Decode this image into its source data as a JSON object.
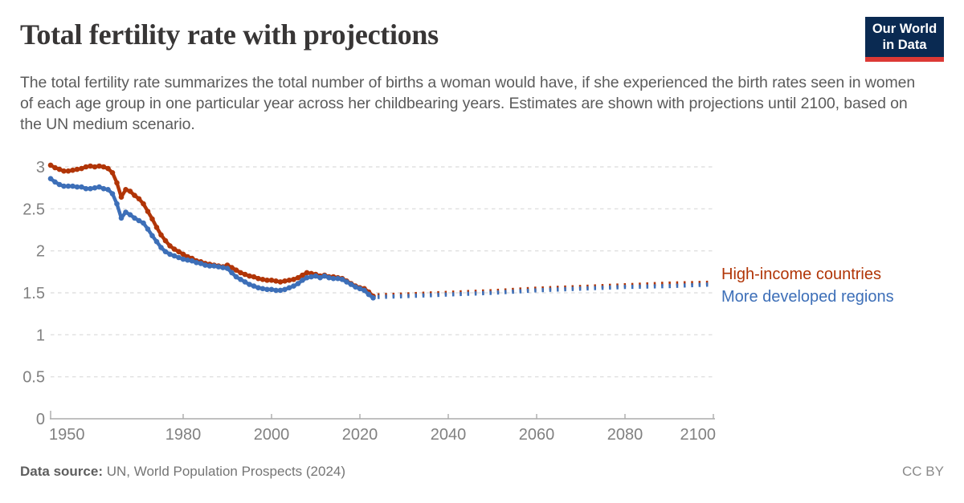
{
  "header": {
    "title": "Total fertility rate with projections",
    "logo": {
      "line1": "Our World",
      "line2": "in Data"
    }
  },
  "subtitle": "The total fertility rate summarizes the total number of births a woman would have, if she experienced the birth rates seen in women of each age group in one particular year across her childbearing years. Estimates are shown with projections until 2100, based on the UN medium scenario.",
  "footer": {
    "source_label": "Data source:",
    "source_text": " UN, World Population Prospects (2024)",
    "license": "CC BY"
  },
  "colors": {
    "red_series": "#b13507",
    "blue_series": "#3d6fb8",
    "gridline": "#e0e0e0",
    "axis": "#ababab",
    "tick_label": "#818181",
    "logo_bg": "#0a2a52",
    "logo_bar": "#dc3935"
  },
  "chart_data": {
    "type": "line",
    "title": "Total fertility rate with projections",
    "xlabel": "",
    "ylabel": "",
    "x_range": [
      1950,
      2100
    ],
    "y_range": [
      0,
      3
    ],
    "x_ticks": [
      1950,
      1980,
      2000,
      2020,
      2040,
      2060,
      2080,
      2100
    ],
    "y_ticks": [
      0,
      0.5,
      1,
      1.5,
      2,
      2.5,
      3
    ],
    "grid": true,
    "legend_position": "right-of-line-end",
    "series": [
      {
        "name": "High-income countries",
        "color": "#b13507",
        "style": "solid-dots",
        "x_start": 1950,
        "x_step": 1,
        "values": [
          3.02,
          2.99,
          2.97,
          2.95,
          2.95,
          2.96,
          2.97,
          2.98,
          3.0,
          3.01,
          3.0,
          3.01,
          3.0,
          2.98,
          2.93,
          2.81,
          2.64,
          2.73,
          2.71,
          2.66,
          2.62,
          2.56,
          2.47,
          2.38,
          2.28,
          2.19,
          2.12,
          2.06,
          2.02,
          1.99,
          1.96,
          1.93,
          1.91,
          1.88,
          1.87,
          1.85,
          1.84,
          1.83,
          1.82,
          1.81,
          1.83,
          1.8,
          1.77,
          1.74,
          1.72,
          1.7,
          1.69,
          1.67,
          1.66,
          1.65,
          1.65,
          1.64,
          1.63,
          1.64,
          1.65,
          1.66,
          1.68,
          1.71,
          1.74,
          1.73,
          1.72,
          1.7,
          1.71,
          1.69,
          1.69,
          1.68,
          1.67,
          1.64,
          1.61,
          1.58,
          1.56,
          1.55,
          1.51,
          1.46
        ]
      },
      {
        "name": "More developed regions",
        "color": "#3d6fb8",
        "style": "solid-dots",
        "x_start": 1950,
        "x_step": 1,
        "values": [
          2.86,
          2.82,
          2.79,
          2.77,
          2.77,
          2.77,
          2.76,
          2.76,
          2.74,
          2.74,
          2.75,
          2.76,
          2.74,
          2.73,
          2.68,
          2.56,
          2.39,
          2.46,
          2.43,
          2.39,
          2.36,
          2.33,
          2.26,
          2.18,
          2.11,
          2.04,
          1.99,
          1.96,
          1.94,
          1.92,
          1.9,
          1.89,
          1.88,
          1.86,
          1.85,
          1.83,
          1.82,
          1.82,
          1.81,
          1.8,
          1.79,
          1.74,
          1.69,
          1.66,
          1.63,
          1.6,
          1.58,
          1.56,
          1.55,
          1.54,
          1.54,
          1.53,
          1.53,
          1.54,
          1.56,
          1.58,
          1.61,
          1.65,
          1.68,
          1.69,
          1.7,
          1.68,
          1.7,
          1.68,
          1.67,
          1.67,
          1.66,
          1.63,
          1.6,
          1.57,
          1.55,
          1.53,
          1.48,
          1.44
        ]
      },
      {
        "name": "High-income countries (projection)",
        "color": "#b13507",
        "style": "dotted",
        "x": [
          2024,
          2030,
          2040,
          2050,
          2060,
          2070,
          2080,
          2090,
          2100
        ],
        "values": [
          1.47,
          1.48,
          1.5,
          1.52,
          1.55,
          1.57,
          1.59,
          1.61,
          1.62
        ]
      },
      {
        "name": "More developed regions (projection)",
        "color": "#3d6fb8",
        "style": "dotted",
        "x": [
          2024,
          2030,
          2040,
          2050,
          2060,
          2070,
          2080,
          2090,
          2100
        ],
        "values": [
          1.45,
          1.46,
          1.48,
          1.5,
          1.53,
          1.55,
          1.57,
          1.58,
          1.6
        ]
      }
    ]
  }
}
